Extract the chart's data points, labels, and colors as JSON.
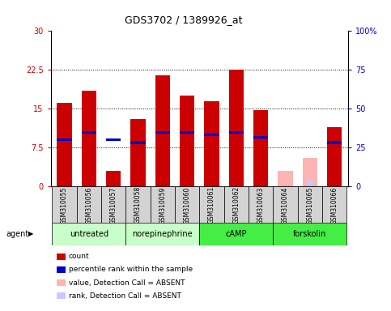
{
  "title": "GDS3702 / 1389926_at",
  "samples": [
    "GSM310055",
    "GSM310056",
    "GSM310057",
    "GSM310058",
    "GSM310059",
    "GSM310060",
    "GSM310061",
    "GSM310062",
    "GSM310063",
    "GSM310064",
    "GSM310065",
    "GSM310066"
  ],
  "red_values": [
    16.2,
    18.5,
    3.0,
    13.0,
    21.5,
    17.5,
    16.5,
    22.5,
    14.8,
    0.0,
    0.0,
    11.5
  ],
  "blue_values": [
    9.0,
    10.5,
    9.0,
    8.5,
    10.5,
    10.5,
    10.0,
    10.5,
    9.5,
    0.0,
    0.0,
    8.5
  ],
  "pink_values": [
    0.0,
    0.0,
    0.0,
    0.0,
    0.0,
    0.0,
    0.0,
    0.0,
    0.0,
    3.0,
    5.5,
    0.0
  ],
  "lavender_values": [
    0.0,
    0.0,
    0.0,
    0.0,
    0.0,
    0.0,
    0.0,
    0.0,
    0.0,
    0.0,
    1.5,
    0.0
  ],
  "absent_samples": [
    9,
    10
  ],
  "groups": [
    {
      "label": "untreated",
      "samples": [
        0,
        1,
        2
      ],
      "color": "#c8ffc8"
    },
    {
      "label": "norepinephrine",
      "samples": [
        3,
        4,
        5
      ],
      "color": "#c8ffc8"
    },
    {
      "label": "cAMP",
      "samples": [
        6,
        7,
        8
      ],
      "color": "#44ee44"
    },
    {
      "label": "forskolin",
      "samples": [
        9,
        10,
        11
      ],
      "color": "#44ee44"
    }
  ],
  "ylim_left": [
    0,
    30
  ],
  "ylim_right": [
    0,
    100
  ],
  "yticks_left": [
    0,
    7.5,
    15,
    22.5,
    30
  ],
  "yticks_right": [
    0,
    25,
    50,
    75,
    100
  ],
  "ytick_labels_left": [
    "0",
    "7.5",
    "15",
    "22.5",
    "30"
  ],
  "ytick_labels_right": [
    "0",
    "25",
    "50",
    "75",
    "100%"
  ],
  "dotted_lines": [
    7.5,
    15,
    22.5
  ],
  "red_color": "#cc0000",
  "blue_color": "#0000cc",
  "pink_color": "#ffb3b3",
  "lavender_color": "#c8c8ff",
  "bar_width": 0.6,
  "blue_bar_height": 0.5,
  "legend_items": [
    {
      "color": "#cc0000",
      "label": "count"
    },
    {
      "color": "#0000cc",
      "label": "percentile rank within the sample"
    },
    {
      "color": "#ffb3b3",
      "label": "value, Detection Call = ABSENT"
    },
    {
      "color": "#c8c8ff",
      "label": "rank, Detection Call = ABSENT"
    }
  ]
}
